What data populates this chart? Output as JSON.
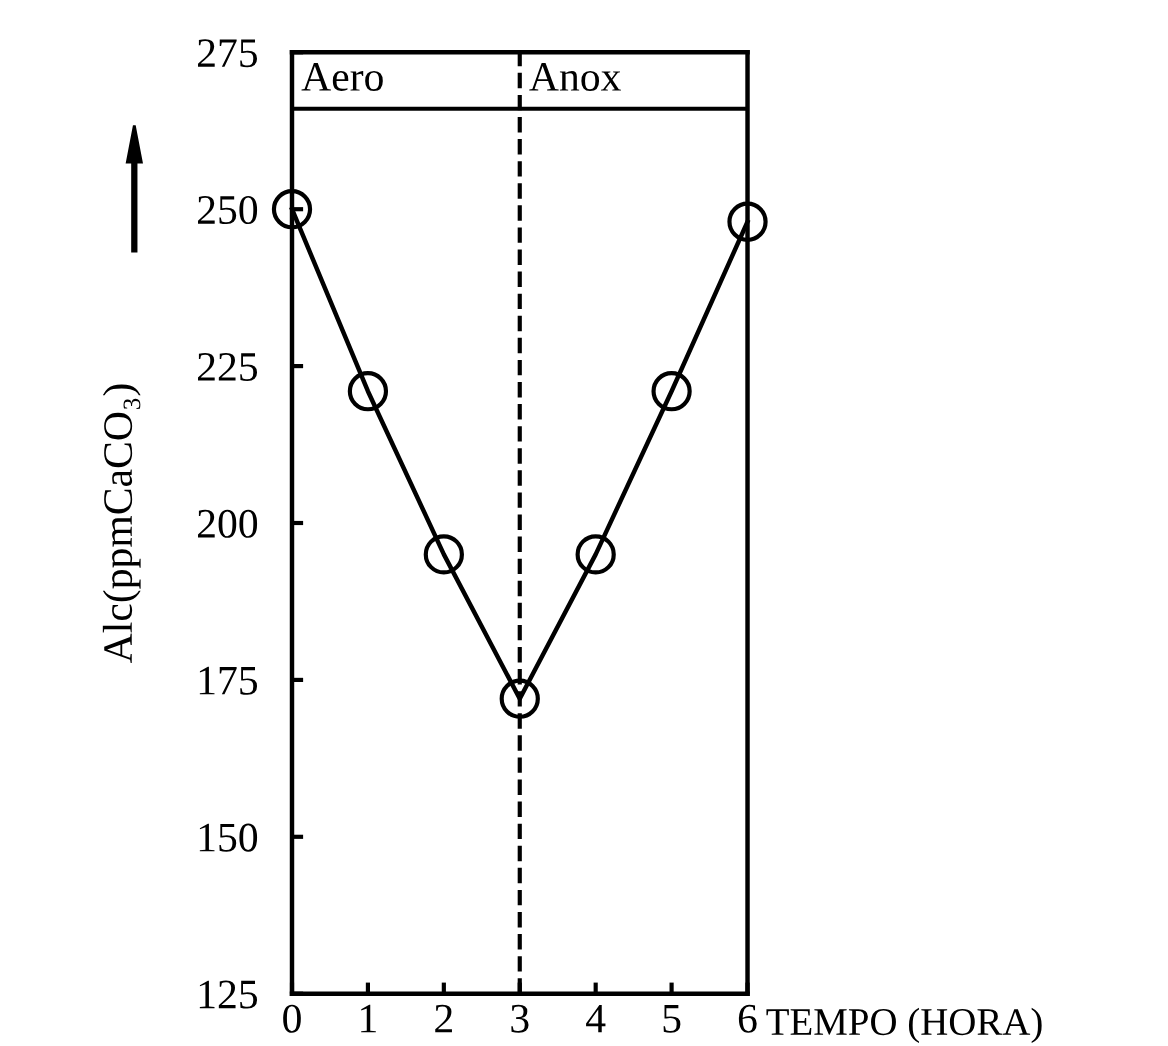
{
  "chart_data": {
    "type": "line",
    "xlabel": "TEMPO (HORA)",
    "ylabel": "Alc(ppmCaCO₃)",
    "x": [
      0,
      1,
      2,
      3,
      4,
      5,
      6
    ],
    "series": [
      {
        "color": "#000000",
        "values": [
          250,
          221,
          195,
          172,
          195,
          221,
          248
        ]
      }
    ],
    "xlim": [
      0,
      6
    ],
    "ylim": [
      125,
      275
    ],
    "xticks": [
      0,
      1,
      2,
      3,
      4,
      5,
      6
    ],
    "yticks": [
      125,
      150,
      175,
      200,
      225,
      250,
      275
    ],
    "marker": "circle",
    "line_style": "solid",
    "grid": false,
    "legend": false,
    "ref_lines": [
      {
        "axis": "x",
        "value": 3,
        "color": "#000000",
        "line_style": "dashed"
      },
      {
        "axis": "y",
        "value": 266,
        "color": "#000000",
        "line_style": "solid"
      }
    ],
    "annotations": [
      "Aero",
      "Anox"
    ]
  }
}
